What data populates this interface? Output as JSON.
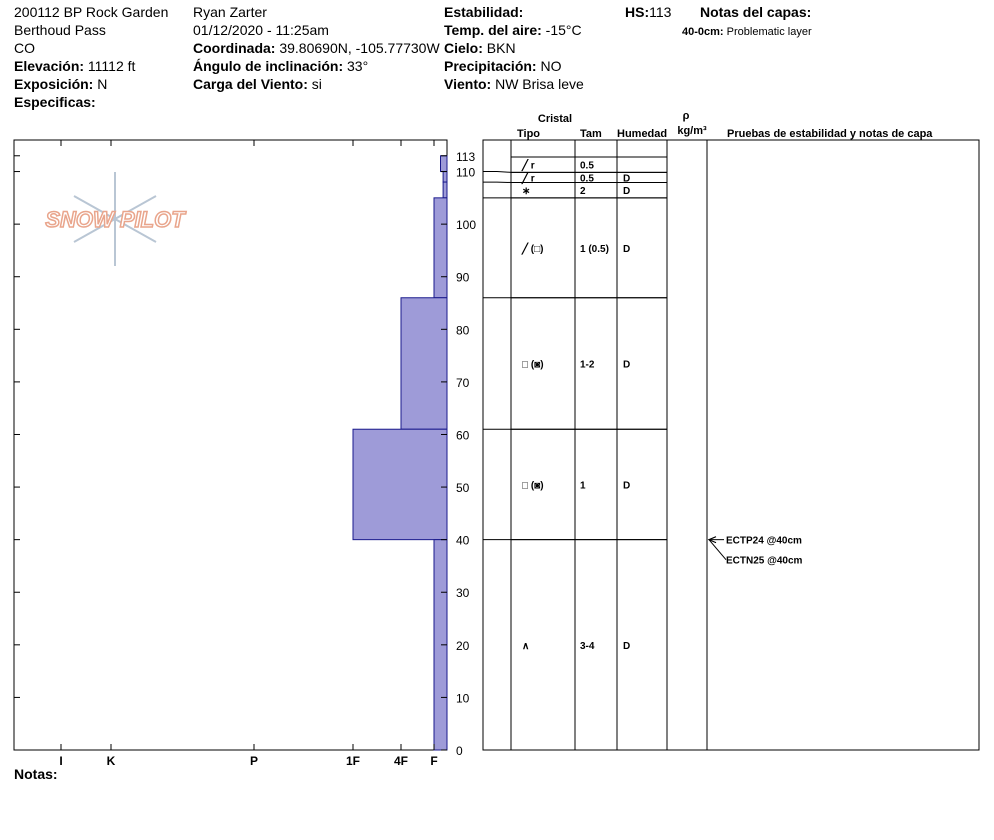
{
  "header": {
    "site": "200112 BP Rock Garden",
    "location": "Berthoud Pass",
    "state": "CO",
    "elevation": {
      "label": "Elevación:",
      "value": "11112 ft"
    },
    "aspect": {
      "label": "Exposición:",
      "value": "N"
    },
    "specifics": {
      "label": "Especificas:"
    },
    "observer": "Ryan Zarter",
    "datetime": "01/12/2020 - 11:25am",
    "coordinates": {
      "label": "Coordinada:",
      "value": "39.80690N, -105.77730W"
    },
    "slope": {
      "label": "Ángulo de inclinación:",
      "value": "33°"
    },
    "wind_loading": {
      "label": "Carga del Viento:",
      "value": "si"
    },
    "stability": {
      "label": "Estabilidad:"
    },
    "air_temp": {
      "label": "Temp. del aire:",
      "value": "-15°C"
    },
    "sky": {
      "label": "Cielo:",
      "value": "BKN"
    },
    "precipitation": {
      "label": "Precipitación:",
      "value": "NO"
    },
    "wind": {
      "label": "Viento:",
      "value": "NW Brisa leve"
    },
    "hs": {
      "label": "HS:",
      "value": 113
    },
    "layer_notes": {
      "label": "Notas del capas:",
      "items": [
        {
          "depth": "40-0cm:",
          "text": "Problematic layer"
        }
      ]
    },
    "notes": {
      "label": "Notas:"
    },
    "logo": "SNOW PILOT"
  },
  "table_header": {
    "crystal": "Cristal",
    "type": "Tipo",
    "size": "Tam",
    "moisture": "Humedad",
    "density": "ρ",
    "density_unit": "kg/m³",
    "tests": "Pruebas de estabilidad y notas de capa"
  },
  "chart_data": {
    "type": "hardness-profile",
    "ylim": [
      0,
      116
    ],
    "yticks": [
      0,
      10,
      20,
      30,
      40,
      50,
      60,
      70,
      80,
      90,
      100,
      110,
      113
    ],
    "xlim": [
      0,
      7
    ],
    "xticks": [
      {
        "value": 1,
        "label": "F"
      },
      {
        "value": 2,
        "label": "4F"
      },
      {
        "value": 3,
        "label": "1F"
      },
      {
        "value": 4,
        "label": "P"
      },
      {
        "value": 5,
        "label": "K"
      },
      {
        "value": 6,
        "label": "I"
      }
    ],
    "color": "#9e9bd8",
    "layers": [
      {
        "top": 113,
        "bottom": 110,
        "hardness": 0.5,
        "grain": "╱ r",
        "size": "0.5"
      },
      {
        "top": 110,
        "bottom": 108,
        "hardness": 0.3,
        "grain": "╱ r",
        "size": "0.5",
        "moisture": "D"
      },
      {
        "top": 108,
        "bottom": 105,
        "hardness": 0.3,
        "grain": "∗",
        "size": "2",
        "moisture": "D"
      },
      {
        "top": 105,
        "bottom": 86,
        "hardness": 1,
        "grain": "╱ (□)",
        "size": "1 (0.5)",
        "moisture": "D"
      },
      {
        "top": 86,
        "bottom": 61,
        "hardness": 2,
        "grain": "□ (◙)",
        "size": "1-2",
        "moisture": "D"
      },
      {
        "top": 61,
        "bottom": 40,
        "hardness": 3,
        "grain": "□ (◙)",
        "size": "1",
        "moisture": "D"
      },
      {
        "top": 40,
        "bottom": 0,
        "hardness": 1,
        "grain": "∧",
        "size": "3-4",
        "moisture": "D"
      }
    ],
    "tests": [
      {
        "label": "ECTP24 @40cm",
        "depth": 40
      },
      {
        "label": "ECTN25 @40cm",
        "depth": 40
      }
    ]
  }
}
